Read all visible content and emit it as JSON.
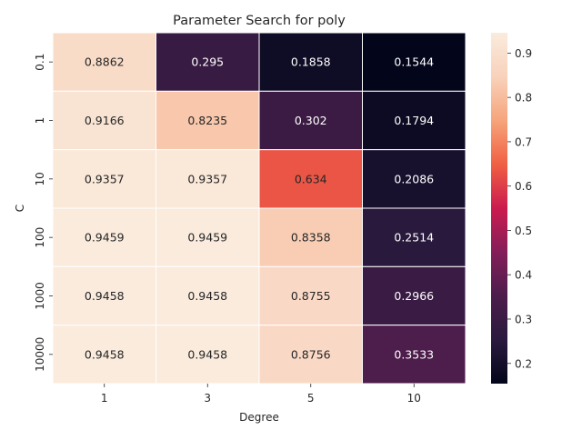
{
  "chart_data": {
    "type": "heatmap",
    "title": "Parameter Search for poly",
    "xlabel": "Degree",
    "ylabel": "C",
    "x_categories": [
      "1",
      "3",
      "5",
      "10"
    ],
    "y_categories": [
      "0.1",
      "1",
      "10",
      "100",
      "1000",
      "10000"
    ],
    "values": [
      [
        0.8862,
        0.295,
        0.1858,
        0.1544
      ],
      [
        0.9166,
        0.8235,
        0.302,
        0.1794
      ],
      [
        0.9357,
        0.9357,
        0.634,
        0.2086
      ],
      [
        0.9459,
        0.9459,
        0.8358,
        0.2514
      ],
      [
        0.9458,
        0.9458,
        0.8755,
        0.2966
      ],
      [
        0.9458,
        0.9458,
        0.8756,
        0.3533
      ]
    ],
    "value_labels": [
      [
        "0.8862",
        "0.295",
        "0.1858",
        "0.1544"
      ],
      [
        "0.9166",
        "0.8235",
        "0.302",
        "0.1794"
      ],
      [
        "0.9357",
        "0.9357",
        "0.634",
        "0.2086"
      ],
      [
        "0.9459",
        "0.9459",
        "0.8358",
        "0.2514"
      ],
      [
        "0.9458",
        "0.9458",
        "0.8755",
        "0.2966"
      ],
      [
        "0.9458",
        "0.9458",
        "0.8756",
        "0.3533"
      ]
    ],
    "colorbar": {
      "min": 0.1544,
      "max": 0.9459,
      "ticks": [
        "0.2",
        "0.3",
        "0.4",
        "0.5",
        "0.6",
        "0.7",
        "0.8",
        "0.9"
      ]
    },
    "colormap": "rocket"
  }
}
